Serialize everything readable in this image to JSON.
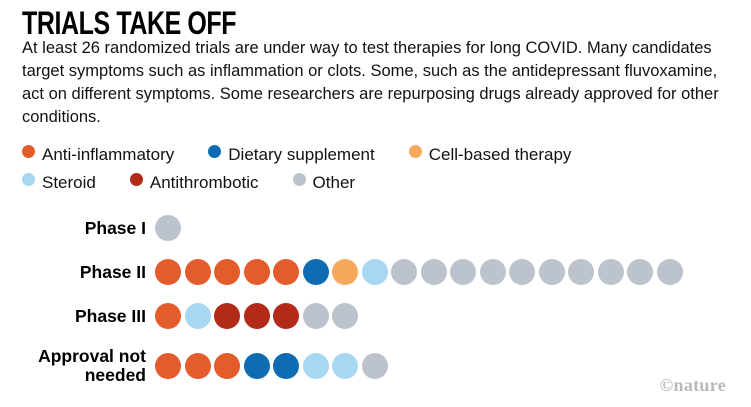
{
  "header": {
    "title": "TRIALS TAKE OFF",
    "description": "At least 26 randomized trials are under way to test therapies for long COVID. Many candidates target symptoms such as inflammation or clots. Some, such as the antidepressant fluvoxamine, act on different symptoms. Some researchers are repurposing drugs already approved for other conditions."
  },
  "footer": {
    "credit": "©nature"
  },
  "categories": {
    "anti-inflammatory": {
      "label": "Anti-inflammatory",
      "color": "#E45C2B"
    },
    "dietary-supplement": {
      "label": "Dietary supplement",
      "color": "#0E6DB2"
    },
    "cell-based-therapy": {
      "label": "Cell-based therapy",
      "color": "#F6A95C"
    },
    "steroid": {
      "label": "Steroid",
      "color": "#A7D8F3"
    },
    "antithrombotic": {
      "label": "Antithrombotic",
      "color": "#B22A18"
    },
    "other": {
      "label": "Other",
      "color": "#BDC3CD"
    }
  },
  "legend": {
    "rows": [
      [
        "anti-inflammatory",
        "dietary-supplement",
        "cell-based-therapy"
      ],
      [
        "steroid",
        "antithrombotic",
        "other"
      ]
    ]
  },
  "chart_data": {
    "type": "dot-matrix",
    "title": "TRIALS TAKE OFF",
    "legend_position": "top",
    "unit_note": "one dot per trial as depicted",
    "rows": [
      {
        "label": "Phase I",
        "count": 1,
        "dots": [
          "other"
        ]
      },
      {
        "label": "Phase II",
        "count": 18,
        "dots": [
          "anti-inflammatory",
          "anti-inflammatory",
          "anti-inflammatory",
          "anti-inflammatory",
          "anti-inflammatory",
          "dietary-supplement",
          "cell-based-therapy",
          "steroid",
          "other",
          "other",
          "other",
          "other",
          "other",
          "other",
          "other",
          "other",
          "other",
          "other"
        ]
      },
      {
        "label": "Phase III",
        "count": 7,
        "dots": [
          "anti-inflammatory",
          "steroid",
          "antithrombotic",
          "antithrombotic",
          "antithrombotic",
          "other",
          "other"
        ]
      },
      {
        "label": "Approval not needed",
        "count": 8,
        "dots": [
          "anti-inflammatory",
          "anti-inflammatory",
          "anti-inflammatory",
          "dietary-supplement",
          "dietary-supplement",
          "steroid",
          "steroid",
          "other"
        ]
      }
    ],
    "total_dots": 34
  }
}
